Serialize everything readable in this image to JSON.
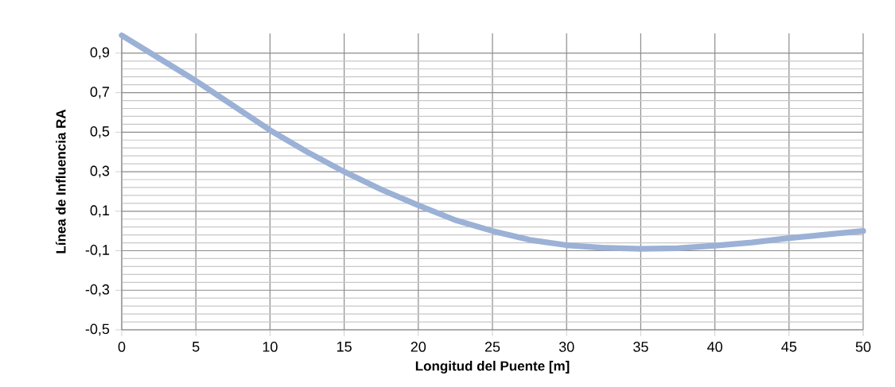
{
  "chart_data": {
    "type": "line",
    "xlabel": "Longitud del Puente [m]",
    "ylabel": "Línea de Influencia RA",
    "x": [
      0,
      2.5,
      5,
      7.5,
      10,
      12.5,
      15,
      17.5,
      20,
      22.5,
      25,
      27.5,
      30,
      32.5,
      35,
      37.5,
      40,
      42.5,
      45,
      47.5,
      50
    ],
    "series": [
      {
        "color": "#9bb1d6",
        "values": [
          0.99,
          0.875,
          0.76,
          0.635,
          0.51,
          0.4,
          0.3,
          0.21,
          0.13,
          0.055,
          0.0,
          -0.045,
          -0.072,
          -0.085,
          -0.09,
          -0.087,
          -0.074,
          -0.058,
          -0.036,
          -0.018,
          0.0
        ]
      }
    ],
    "xlim": [
      0,
      50
    ],
    "xticks": [
      0,
      5,
      10,
      15,
      20,
      25,
      30,
      35,
      40,
      45,
      50
    ],
    "ylim": [
      -0.5,
      1.0
    ],
    "yticks": [
      {
        "value": -0.5,
        "label": "-0,5"
      },
      {
        "value": -0.3,
        "label": "-0,3"
      },
      {
        "value": -0.1,
        "label": "-0,1"
      },
      {
        "value": 0.1,
        "label": "0,1"
      },
      {
        "value": 0.3,
        "label": "0,3"
      },
      {
        "value": 0.5,
        "label": "0,5"
      },
      {
        "value": 0.7,
        "label": "0,7"
      },
      {
        "value": 0.9,
        "label": "0,9"
      }
    ],
    "grid": true,
    "marker": "none",
    "line_style": "solid"
  }
}
